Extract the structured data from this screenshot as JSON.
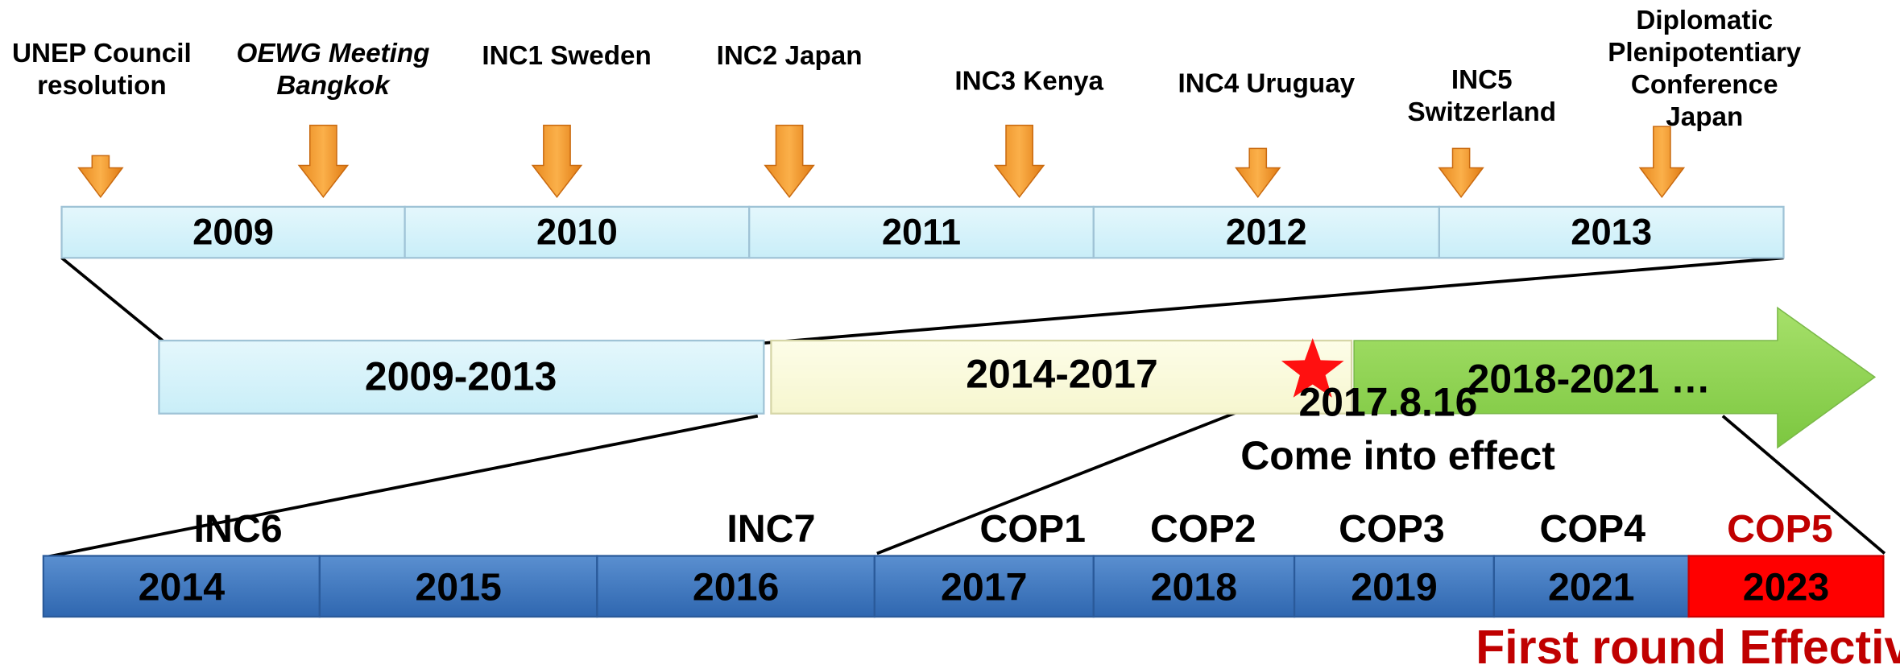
{
  "top_events": [
    {
      "lines": [
        "UNEP Council",
        "resolution"
      ]
    },
    {
      "lines": [
        "OEWG Meeting",
        "Bangkok"
      ]
    },
    {
      "lines": [
        "INC1 Sweden"
      ]
    },
    {
      "lines": [
        "INC2 Japan"
      ]
    },
    {
      "lines": [
        "INC3 Kenya"
      ]
    },
    {
      "lines": [
        "INC4 Uruguay"
      ]
    },
    {
      "lines": [
        "INC5",
        "Switzerland"
      ]
    },
    {
      "lines": [
        "Diplomatic",
        "Plenipotentiary",
        "Conference",
        "Japan"
      ]
    }
  ],
  "top_years": [
    "2009",
    "2010",
    "2011",
    "2012",
    "2013"
  ],
  "periods": [
    "2009-2013",
    "2014-2017",
    "2018-2021 …"
  ],
  "milestone": {
    "date": "2017.8.16",
    "label": "Come into effect"
  },
  "bottom_events": [
    "INC6",
    "INC7",
    "COP1",
    "COP2",
    "COP3",
    "COP4",
    "COP5"
  ],
  "bottom_years": [
    "2014",
    "2015",
    "2016",
    "2017",
    "2018",
    "2019",
    "2021",
    "2023"
  ],
  "evaluation": "First round Effectiveness Evaluation"
}
